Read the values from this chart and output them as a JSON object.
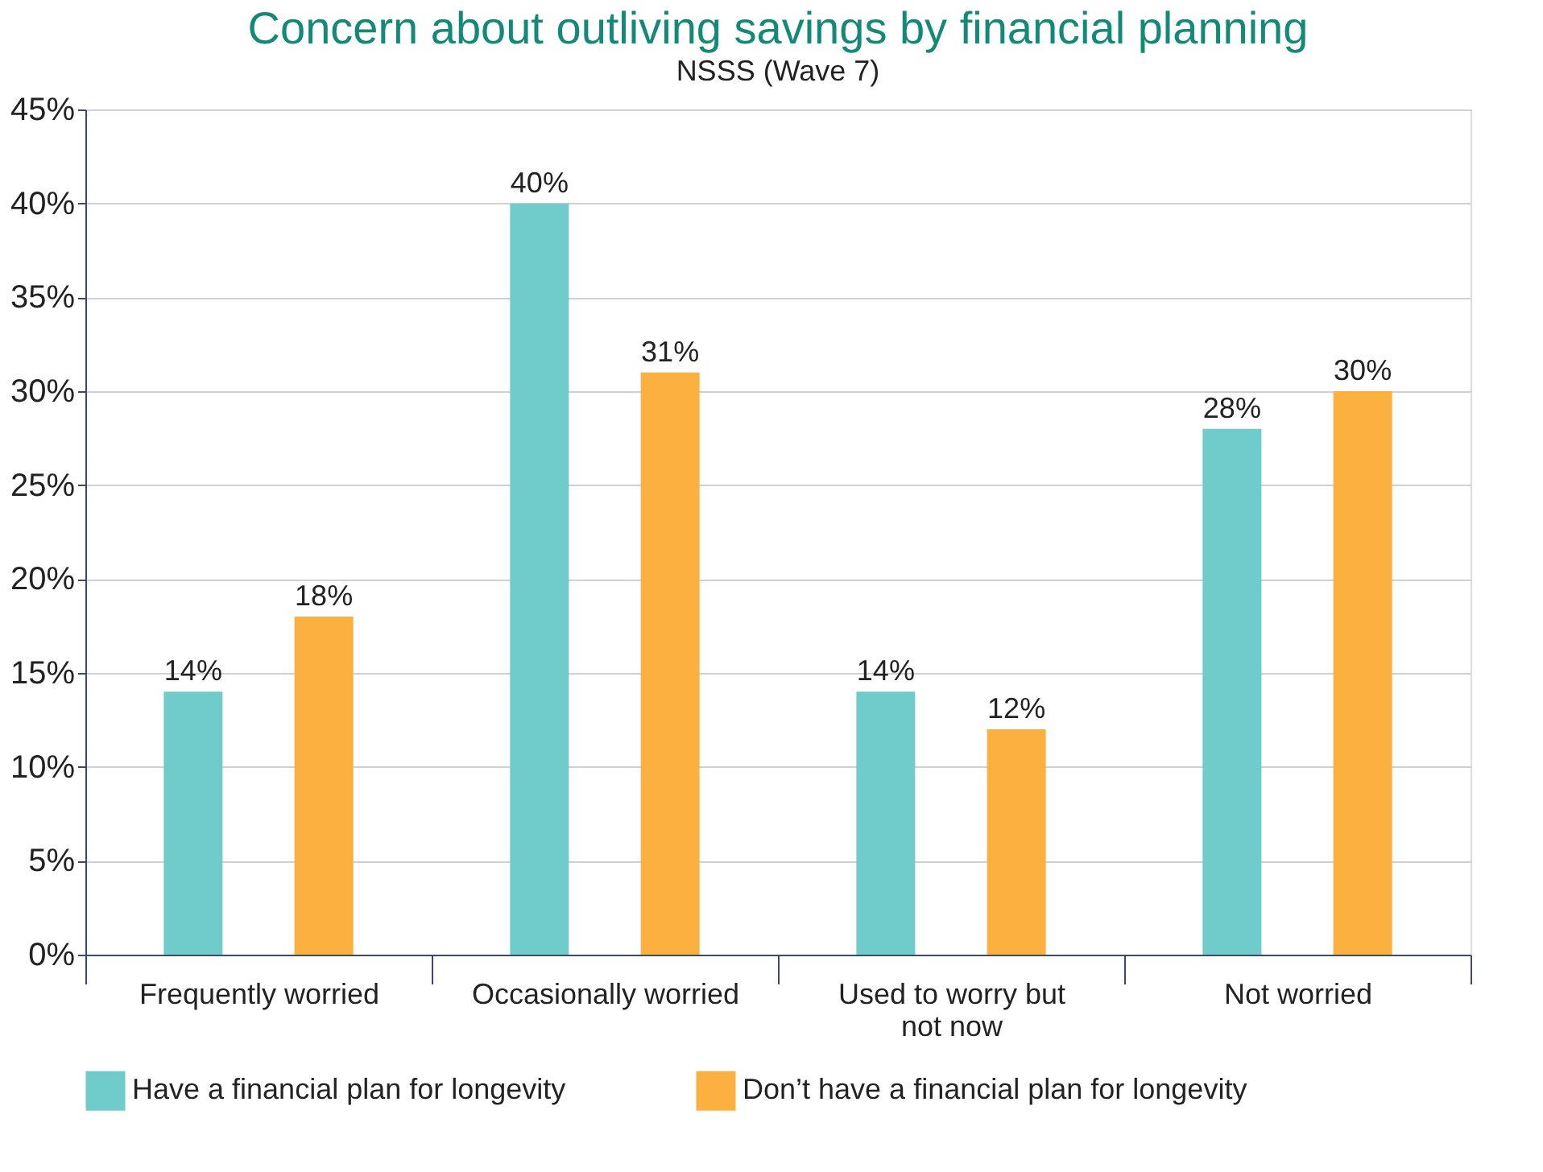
{
  "chart_data": {
    "type": "bar",
    "title": "Concern about outliving savings by financial planning",
    "subtitle": "NSSS (Wave 7)",
    "categories": [
      "Frequently worried",
      "Occasionally worried",
      "Used to worry but not now",
      "Not worried"
    ],
    "series": [
      {
        "name": "Have a financial plan for longevity",
        "color": "#70cbcb",
        "values": [
          14,
          40,
          14,
          28
        ],
        "value_labels": [
          "14%",
          "40%",
          "14%",
          "28%"
        ]
      },
      {
        "name": "Don’t have a financial plan for longevity",
        "color": "#fbb040",
        "values": [
          18,
          31,
          12,
          30
        ],
        "value_labels": [
          "18%",
          "31%",
          "12%",
          "30%"
        ]
      }
    ],
    "ylim": [
      0,
      45
    ],
    "yticks": [
      {
        "value": 0,
        "label": "0%"
      },
      {
        "value": 5,
        "label": "5%"
      },
      {
        "value": 10,
        "label": "10%"
      },
      {
        "value": 15,
        "label": "15%"
      },
      {
        "value": 20,
        "label": "20%"
      },
      {
        "value": 25,
        "label": "25%"
      },
      {
        "value": 30,
        "label": "30%"
      },
      {
        "value": 35,
        "label": "35%"
      },
      {
        "value": 40,
        "label": "40%"
      },
      {
        "value": 45,
        "label": "45%"
      }
    ],
    "grid": "y",
    "legend": "bottom"
  }
}
